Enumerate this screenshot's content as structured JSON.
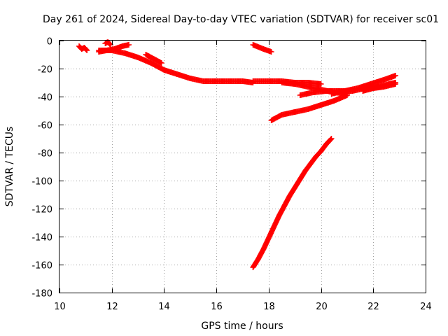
{
  "chart_data": {
    "type": "scatter",
    "title": "Day 261 of 2024, Sidereal Day-to-day VTEC variation (SDTVAR) for receiver sc01",
    "xlabel": "GPS time / hours",
    "ylabel": "SDTVAR / TECUs",
    "xlim": [
      10,
      24
    ],
    "ylim": [
      -180,
      0
    ],
    "x_ticks": [
      10,
      12,
      14,
      16,
      18,
      20,
      22,
      24
    ],
    "y_ticks": [
      0,
      -20,
      -40,
      -60,
      -80,
      -100,
      -120,
      -140,
      -160,
      -180
    ],
    "grid": true,
    "legend": "none",
    "marker": "plus",
    "color": "#ff0000",
    "series": [
      {
        "x": [
          10.75,
          10.85,
          10.95,
          11.05
        ],
        "y": [
          -4,
          -6,
          -5,
          -7
        ]
      },
      {
        "x": [
          11.75,
          11.85,
          11.95
        ],
        "y": [
          -2,
          -1,
          -3
        ]
      },
      {
        "x": [
          11.5,
          11.8,
          12.1,
          12.4,
          12.65
        ],
        "y": [
          -8,
          -7,
          -6,
          -4,
          -3
        ]
      },
      {
        "x": [
          11.5,
          12.0,
          12.5,
          13.0,
          13.5,
          14.0,
          14.5,
          15.0,
          15.5,
          16.0,
          16.5,
          17.0,
          17.4
        ],
        "y": [
          -7,
          -7,
          -9,
          -12,
          -16,
          -21,
          -24,
          -27,
          -29,
          -29,
          -29,
          -29,
          -30
        ]
      },
      {
        "x": [
          13.3,
          13.6,
          13.9
        ],
        "y": [
          -10,
          -13,
          -16
        ]
      },
      {
        "x": [
          17.4,
          17.8,
          18.1
        ],
        "y": [
          -3,
          -6,
          -8
        ]
      },
      {
        "x": [
          17.4,
          18.0,
          18.5,
          19.0,
          19.5,
          20.0
        ],
        "y": [
          -29,
          -29,
          -29,
          -30,
          -30,
          -31
        ]
      },
      {
        "x": [
          18.5,
          19.0,
          19.5,
          20.0,
          20.5,
          21.0
        ],
        "y": [
          -30,
          -31,
          -33,
          -35,
          -37,
          -38
        ]
      },
      {
        "x": [
          19.2,
          19.7,
          20.2,
          20.7,
          21.2,
          21.7,
          22.2,
          22.6,
          22.85
        ],
        "y": [
          -39,
          -37,
          -36,
          -36,
          -36,
          -34,
          -33,
          -31,
          -30
        ]
      },
      {
        "x": [
          20.4,
          20.9,
          21.4,
          21.9,
          22.4,
          22.85
        ],
        "y": [
          -38,
          -36,
          -34,
          -31,
          -28,
          -25
        ]
      },
      {
        "x": [
          21.6,
          22.0,
          22.4,
          22.85
        ],
        "y": [
          -36,
          -34,
          -33,
          -31
        ]
      },
      {
        "x": [
          18.1,
          18.5,
          19.0,
          19.5,
          20.0,
          20.5,
          21.0
        ],
        "y": [
          -57,
          -53,
          -51,
          -49,
          -46,
          -43,
          -39
        ]
      },
      {
        "x": [
          17.4,
          17.6,
          17.8,
          18.0,
          18.2,
          18.4,
          18.6,
          18.8,
          19.0,
          19.2,
          19.4,
          19.6,
          19.8,
          20.0,
          20.2,
          20.4
        ],
        "y": [
          -162,
          -156,
          -149,
          -141,
          -133,
          -125,
          -118,
          -111,
          -105,
          -99,
          -93,
          -88,
          -83,
          -79,
          -74,
          -70
        ]
      }
    ]
  }
}
